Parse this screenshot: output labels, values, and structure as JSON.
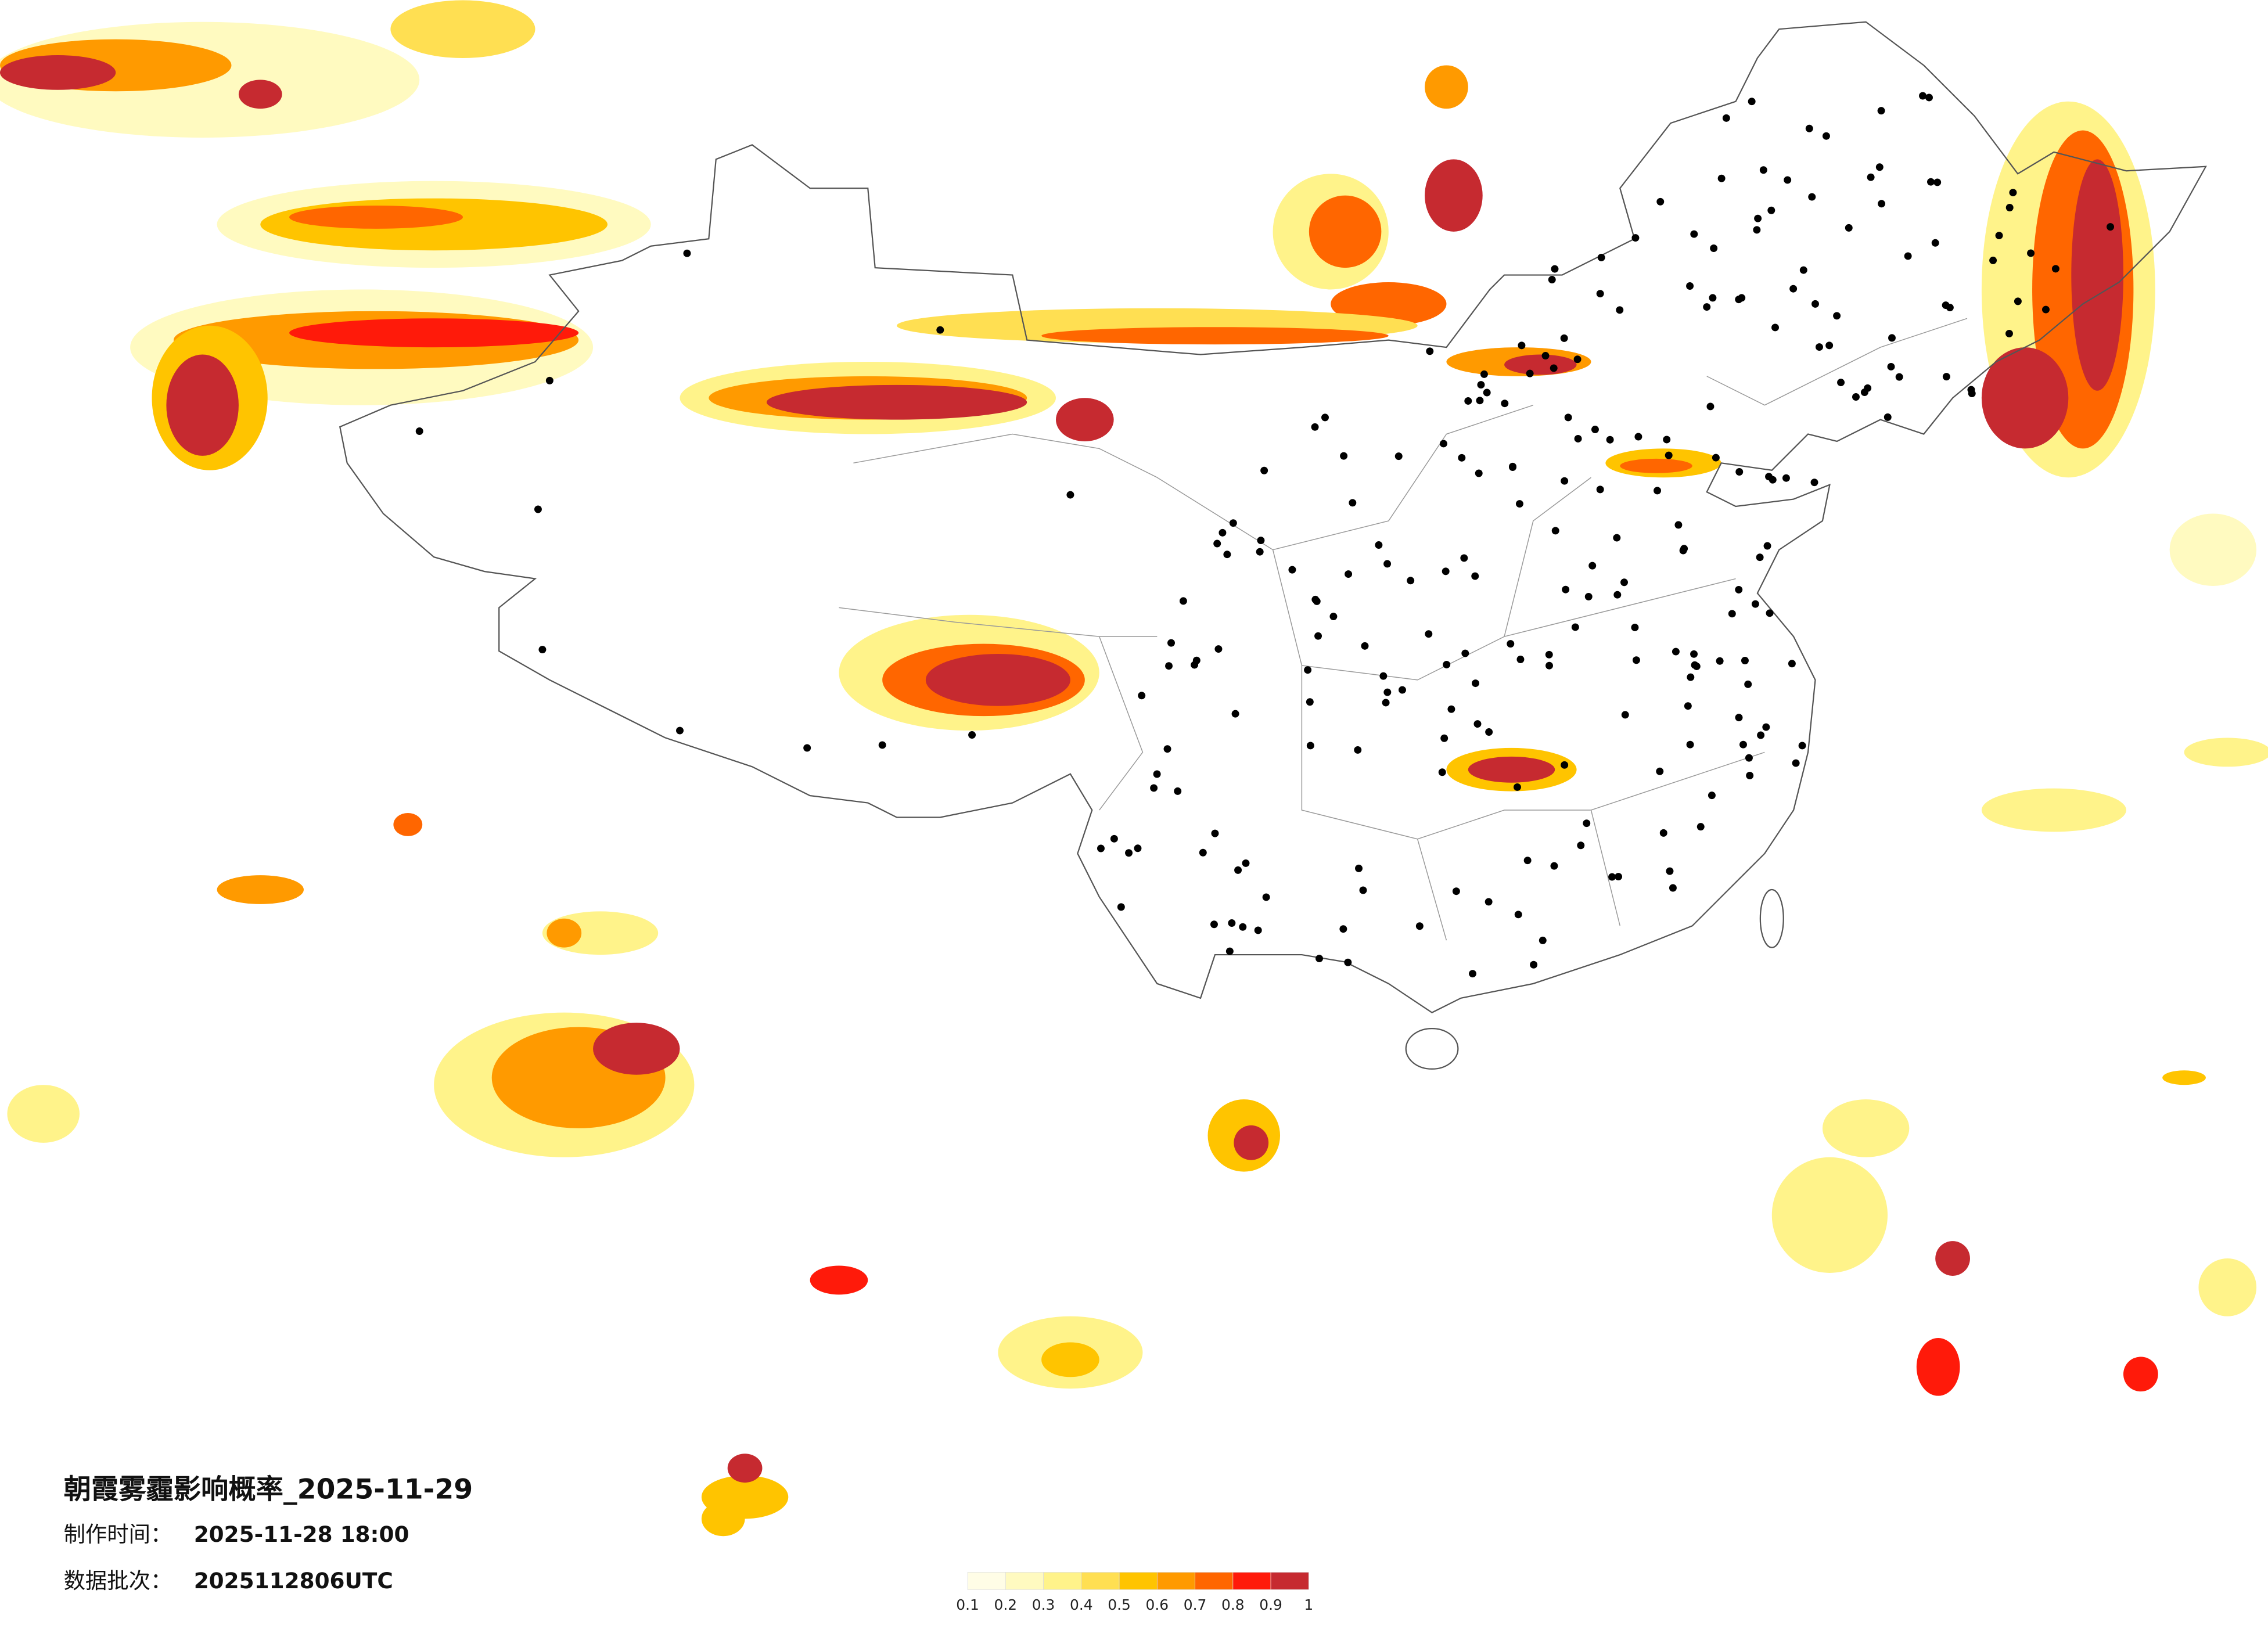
{
  "title": "朝霞雾霾影响概率_2025-11-29",
  "production_time": {
    "label": "制作时间：",
    "value": "2025-11-28 18:00"
  },
  "batch": {
    "label": "数据批次：",
    "value": "2025112806UTC"
  },
  "legend": {
    "colors": [
      "#fffde6",
      "#fffac0",
      "#fff38a",
      "#ffdf52",
      "#ffc400",
      "#ff9a00",
      "#ff6600",
      "#ff1a0a",
      "#c62a30"
    ],
    "ticks": [
      0.1,
      0.2,
      0.3,
      0.4,
      0.5,
      0.6,
      0.7,
      0.8,
      0.9,
      1
    ]
  }
}
